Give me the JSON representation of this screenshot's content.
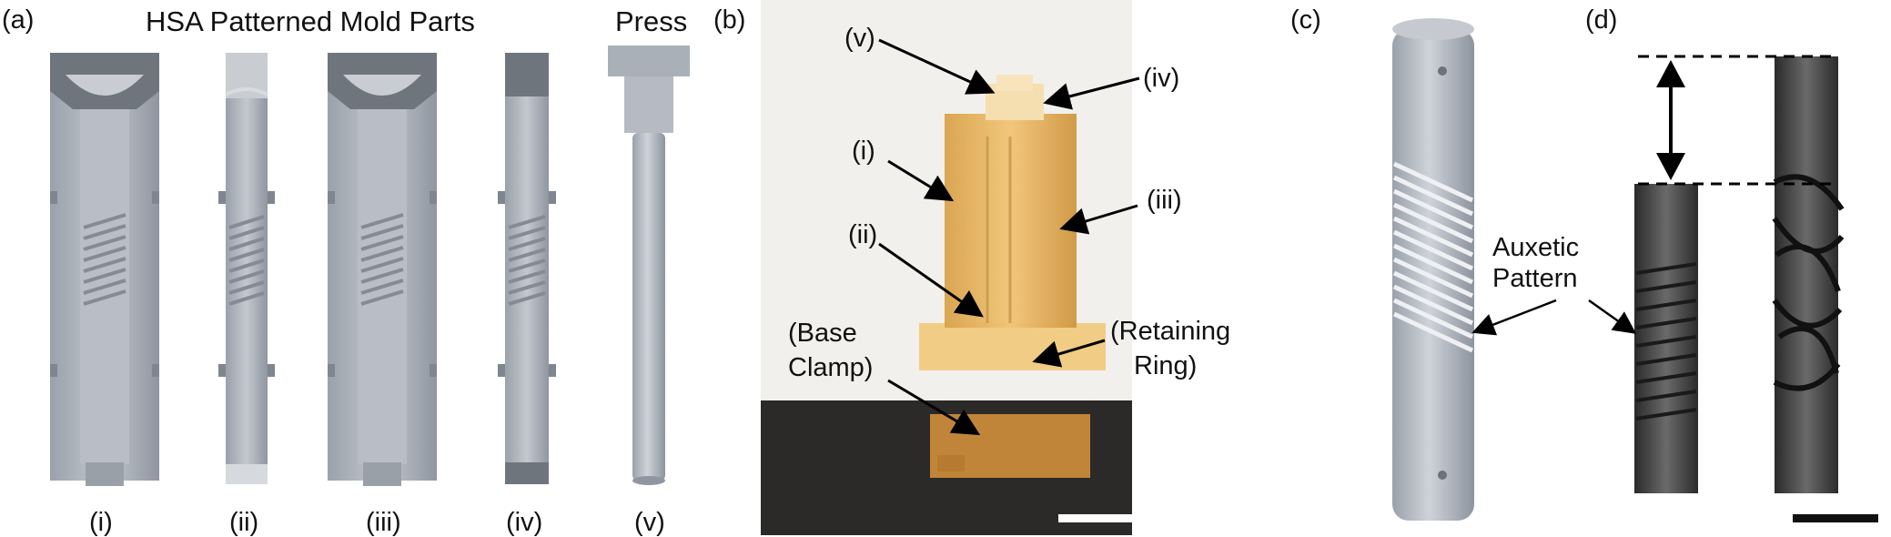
{
  "panel_a": {
    "letter": "(a)",
    "title": "HSA Patterned Mold Parts",
    "press_title": "Press",
    "parts": [
      "(i)",
      "(ii)",
      "(iii)",
      "(iv)",
      "(v)"
    ]
  },
  "panel_b": {
    "letter": "(b)",
    "callouts": {
      "v": "(v)",
      "iv": "(iv)",
      "i": "(i)",
      "iii": "(iii)",
      "ii": "(ii)",
      "base_line1": "(Base",
      "base_line2": "Clamp)",
      "ring_line1": "(Retaining",
      "ring_line2": "Ring)"
    }
  },
  "panel_c": {
    "letter": "(c)",
    "label_line1": "Auxetic",
    "label_line2": "Pattern"
  },
  "panel_d": {
    "letter": "(d)"
  },
  "colors": {
    "mold_gray": "#aeb4bd",
    "photo_wall": "#f1f0ec",
    "photo_table": "#2b2a28",
    "amber": "#e8b45c"
  }
}
